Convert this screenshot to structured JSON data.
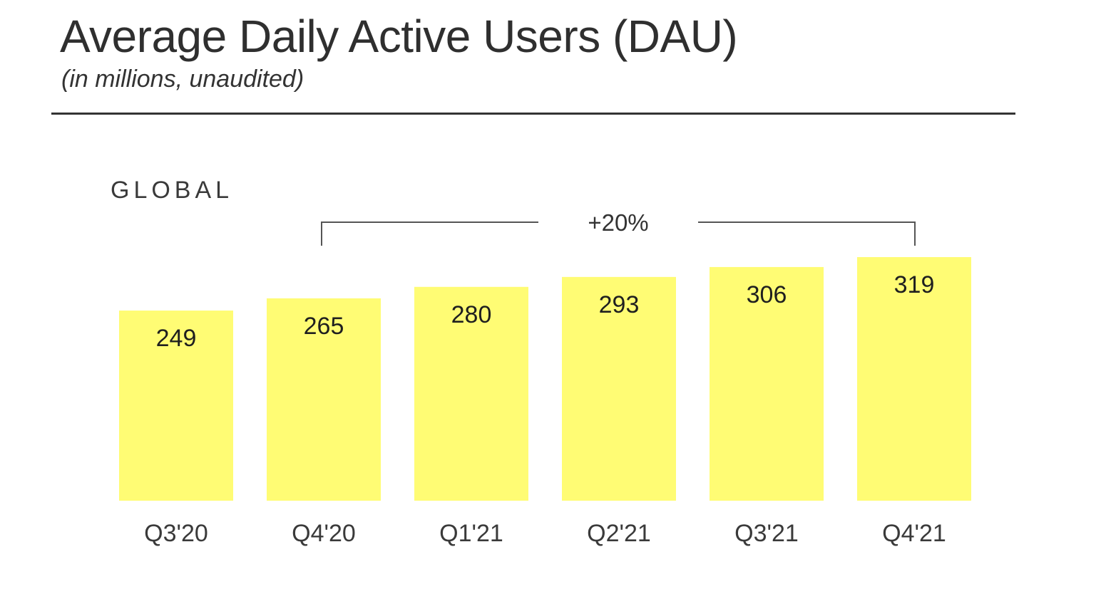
{
  "header": {
    "title": "Average Daily Active Users (DAU)",
    "subtitle": "(in millions, unaudited)"
  },
  "chart_data": {
    "type": "bar",
    "title": "Average Daily Active Users (DAU)",
    "subtitle": "(in millions, unaudited)",
    "panel_label": "GLOBAL",
    "categories": [
      "Q3'20",
      "Q4'20",
      "Q1'21",
      "Q2'21",
      "Q3'21",
      "Q4'21"
    ],
    "values": [
      249,
      265,
      280,
      293,
      306,
      319
    ],
    "data_labels": [
      "249",
      "265",
      "280",
      "293",
      "306",
      "319"
    ],
    "ylim": [
      0,
      319
    ],
    "grid": false,
    "annotation": {
      "text": "+20%",
      "from_category": "Q4'20",
      "to_category": "Q4'21"
    },
    "colors": {
      "bar": "#FFFC74",
      "text": "#2b2b2b",
      "bracket": "#555555"
    }
  }
}
